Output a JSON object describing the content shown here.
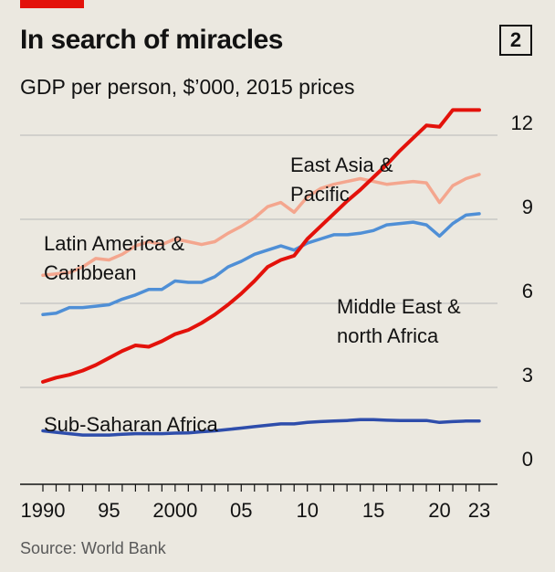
{
  "header": {
    "title": "In search of miracles",
    "chart_number": "2",
    "subtitle": "GDP per person, $’000, 2015 prices"
  },
  "footer": {
    "source": "Source: World Bank"
  },
  "colors": {
    "background": "#ebe8e0",
    "accent": "#e3120b",
    "grid": "#b7b7b7",
    "axis": "#121212"
  },
  "chart_data": {
    "type": "line",
    "title": "In search of miracles",
    "subtitle": "GDP per person, $’000, 2015 prices",
    "xlabel": "",
    "ylabel": "",
    "xlim": [
      1990,
      2023
    ],
    "ylim": [
      0,
      12
    ],
    "y_axis_side": "right",
    "grid": true,
    "x_tick_labels": [
      "1990",
      "95",
      "2000",
      "05",
      "10",
      "15",
      "20",
      "23"
    ],
    "x_tick_values": [
      1990,
      1995,
      2000,
      2005,
      2010,
      2015,
      2020,
      2023
    ],
    "y_ticks": [
      0,
      3,
      6,
      9,
      12
    ],
    "x": [
      1990,
      1991,
      1992,
      1993,
      1994,
      1995,
      1996,
      1997,
      1998,
      1999,
      2000,
      2001,
      2002,
      2003,
      2004,
      2005,
      2006,
      2007,
      2008,
      2009,
      2010,
      2011,
      2012,
      2013,
      2014,
      2015,
      2016,
      2017,
      2018,
      2019,
      2020,
      2021,
      2022,
      2023
    ],
    "series": [
      {
        "name": "East Asia & Pacific",
        "color": "#e3120b",
        "values": [
          3.2,
          3.35,
          3.45,
          3.6,
          3.8,
          4.05,
          4.3,
          4.5,
          4.45,
          4.65,
          4.9,
          5.05,
          5.3,
          5.6,
          5.95,
          6.35,
          6.8,
          7.3,
          7.55,
          7.7,
          8.3,
          8.75,
          9.2,
          9.65,
          10.05,
          10.5,
          10.95,
          11.45,
          11.9,
          12.35,
          12.3,
          13.1,
          13.45,
          14.0
        ]
      },
      {
        "name": "Latin America & Caribbean",
        "color": "#f4a68e",
        "values": [
          7.0,
          7.05,
          7.1,
          7.3,
          7.6,
          7.55,
          7.75,
          8.05,
          8.2,
          8.1,
          8.3,
          8.2,
          8.1,
          8.2,
          8.5,
          8.75,
          9.05,
          9.45,
          9.6,
          9.25,
          9.8,
          10.1,
          10.25,
          10.35,
          10.45,
          10.35,
          10.25,
          10.3,
          10.35,
          10.3,
          9.6,
          10.2,
          10.45,
          10.6
        ]
      },
      {
        "name": "Middle East & north Africa",
        "color": "#4f8fd6",
        "values": [
          5.6,
          5.65,
          5.85,
          5.85,
          5.9,
          5.95,
          6.15,
          6.3,
          6.5,
          6.5,
          6.8,
          6.75,
          6.75,
          6.95,
          7.3,
          7.5,
          7.75,
          7.9,
          8.05,
          7.9,
          8.15,
          8.3,
          8.45,
          8.45,
          8.5,
          8.6,
          8.8,
          8.85,
          8.9,
          8.8,
          8.4,
          8.85,
          9.15,
          9.2
        ]
      },
      {
        "name": "Sub-Saharan Africa",
        "color": "#2e4dab",
        "values": [
          1.45,
          1.4,
          1.35,
          1.3,
          1.3,
          1.3,
          1.33,
          1.35,
          1.35,
          1.35,
          1.37,
          1.38,
          1.42,
          1.45,
          1.5,
          1.55,
          1.6,
          1.65,
          1.7,
          1.7,
          1.75,
          1.78,
          1.8,
          1.82,
          1.85,
          1.85,
          1.83,
          1.82,
          1.82,
          1.82,
          1.75,
          1.78,
          1.8,
          1.8
        ]
      }
    ],
    "annotations": [
      {
        "series": "East Asia & Pacific",
        "lines": [
          "East Asia &",
          "Pacific"
        ]
      },
      {
        "series": "Latin America & Caribbean",
        "lines": [
          "Latin America &",
          "Caribbean"
        ]
      },
      {
        "series": "Middle East & north Africa",
        "lines": [
          "Middle East &",
          "north Africa"
        ]
      },
      {
        "series": "Sub-Saharan Africa",
        "lines": [
          "Sub-Saharan Africa"
        ]
      }
    ]
  }
}
